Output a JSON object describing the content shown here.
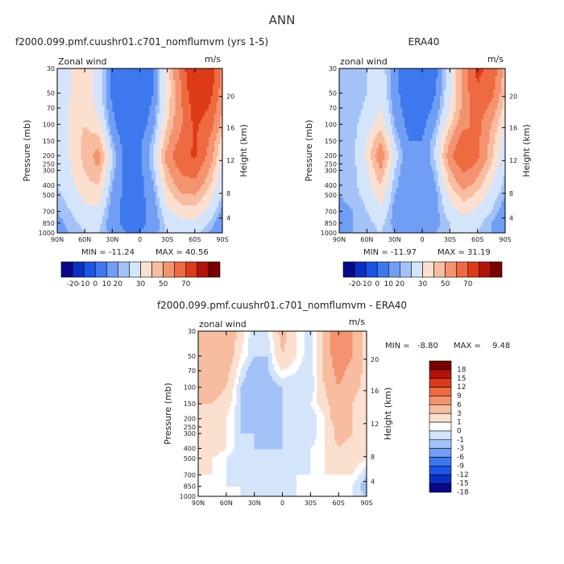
{
  "figure_title": "ANN",
  "chart_data": [
    {
      "type": "heatmap",
      "id": "model",
      "title": "f2000.099.pmf.cuushr01.c701_nomflumvm (yrs 1-5)",
      "variable_label": "Zonal wind",
      "units": "m/s",
      "xlabel": "",
      "ylabel": "Pressure (mb)",
      "y2label": "Height (km)",
      "x_ticks": [
        "90N",
        "60N",
        "30N",
        "0",
        "30S",
        "60S",
        "90S"
      ],
      "y_ticks": [
        "30",
        "50",
        "70",
        "100",
        "150",
        "200",
        "250",
        "300",
        "400",
        "500",
        "700",
        "850",
        "1000"
      ],
      "y2_ticks": [
        "20",
        "16",
        "12",
        "8",
        "4"
      ],
      "min_label": "MIN = -11.24",
      "max_label": "MAX = 40.56",
      "min": -11.24,
      "max": 40.56,
      "colorbar": {
        "orientation": "horizontal",
        "labels": [
          "-20",
          "-10",
          "0",
          "10",
          "20",
          "30",
          "50",
          "70"
        ],
        "colors": [
          "#08088a",
          "#0a2fc4",
          "#1c54e8",
          "#3d78ee",
          "#6f9ef4",
          "#a3c2f8",
          "#d4e4fb",
          "#fbe0d0",
          "#f8bda0",
          "#f49370",
          "#ee6a40",
          "#dc3a18",
          "#b31409",
          "#7a0000"
        ]
      },
      "contour_levels": [
        -10,
        -5,
        0,
        5,
        10,
        15,
        20,
        25,
        30,
        35,
        40
      ],
      "grid_lat": [
        "90N",
        "75N",
        "60N",
        "45N",
        "30N",
        "15N",
        "0",
        "15S",
        "30S",
        "45S",
        "60S",
        "75S",
        "90S"
      ],
      "grid_p": [
        30,
        50,
        70,
        100,
        150,
        200,
        250,
        300,
        400,
        500,
        700,
        850,
        1000
      ],
      "values": [
        [
          0,
          4,
          6,
          2,
          -6,
          -9,
          -8,
          -5,
          5,
          20,
          38,
          36,
          16
        ],
        [
          0,
          4,
          6,
          2,
          -6,
          -9,
          -8,
          -5,
          5,
          18,
          33,
          30,
          14
        ],
        [
          0,
          5,
          7,
          3,
          -5,
          -8,
          -8,
          -4,
          6,
          17,
          30,
          26,
          12
        ],
        [
          0,
          5,
          8,
          5,
          -4,
          -8,
          -7,
          -3,
          8,
          17,
          28,
          22,
          10
        ],
        [
          0,
          5,
          9,
          10,
          -2,
          -7,
          -6,
          -1,
          11,
          20,
          27,
          18,
          6
        ],
        [
          0,
          5,
          9,
          14,
          0,
          -7,
          -6,
          0,
          14,
          24,
          27,
          16,
          4
        ],
        [
          0,
          4,
          9,
          13,
          0,
          -7,
          -6,
          0,
          13,
          22,
          24,
          14,
          3
        ],
        [
          0,
          4,
          8,
          11,
          -1,
          -7,
          -6,
          -1,
          11,
          19,
          21,
          12,
          2
        ],
        [
          0,
          3,
          7,
          8,
          -2,
          -6,
          -6,
          -2,
          8,
          15,
          16,
          9,
          1
        ],
        [
          -1,
          2,
          5,
          6,
          -3,
          -6,
          -6,
          -3,
          6,
          11,
          12,
          6,
          0
        ],
        [
          -2,
          0,
          3,
          3,
          -4,
          -6,
          -6,
          -4,
          3,
          6,
          6,
          3,
          -3
        ],
        [
          -3,
          -1,
          1,
          1,
          -4,
          -6,
          -6,
          -4,
          1,
          3,
          3,
          0,
          -5
        ],
        [
          -3,
          -2,
          0,
          0,
          -3,
          -5,
          -5,
          -3,
          0,
          1,
          1,
          -2,
          -5
        ]
      ]
    },
    {
      "type": "heatmap",
      "id": "obs",
      "title": "ERA40",
      "variable_label": "zonal wind",
      "units": "m/s",
      "xlabel": "",
      "ylabel": "Pressure (mb)",
      "y2label": "Height (km)",
      "x_ticks": [
        "90N",
        "60N",
        "30N",
        "0",
        "30S",
        "60S",
        "90S"
      ],
      "y_ticks": [
        "30",
        "50",
        "70",
        "100",
        "150",
        "200",
        "250",
        "300",
        "400",
        "500",
        "700",
        "850",
        "1000"
      ],
      "y2_ticks": [
        "20",
        "16",
        "12",
        "8",
        "4"
      ],
      "min_label": "MIN = -11.97",
      "max_label": "MAX = 31.19",
      "min": -11.97,
      "max": 31.19,
      "colorbar": {
        "orientation": "horizontal",
        "labels": [
          "-20",
          "-10",
          "0",
          "10",
          "20",
          "30",
          "50",
          "70"
        ],
        "colors": [
          "#08088a",
          "#0a2fc4",
          "#1c54e8",
          "#3d78ee",
          "#6f9ef4",
          "#a3c2f8",
          "#d4e4fb",
          "#fbe0d0",
          "#f8bda0",
          "#f49370",
          "#ee6a40",
          "#dc3a18",
          "#b31409",
          "#7a0000"
        ]
      },
      "contour_levels": [
        -10,
        -5,
        0,
        5,
        10,
        15,
        20,
        25,
        30
      ],
      "grid_lat": [
        "90N",
        "75N",
        "60N",
        "45N",
        "30N",
        "15N",
        "0",
        "15S",
        "30S",
        "45S",
        "60S",
        "75S",
        "90S"
      ],
      "grid_p": [
        30,
        50,
        70,
        100,
        150,
        200,
        250,
        300,
        400,
        500,
        700,
        850,
        1000
      ],
      "values": [
        [
          -2,
          -2,
          0,
          2,
          -4,
          -8,
          -8,
          -6,
          2,
          14,
          28,
          24,
          10
        ],
        [
          -2,
          -2,
          0,
          3,
          -4,
          -7,
          -7,
          -5,
          3,
          14,
          25,
          20,
          8
        ],
        [
          -2,
          -2,
          1,
          4,
          -3,
          -7,
          -7,
          -4,
          4,
          14,
          22,
          16,
          6
        ],
        [
          -2,
          -1,
          2,
          6,
          -2,
          -6,
          -6,
          -2,
          7,
          16,
          20,
          12,
          4
        ],
        [
          -2,
          -1,
          4,
          12,
          0,
          -5,
          -5,
          0,
          12,
          22,
          20,
          10,
          2
        ],
        [
          -2,
          -1,
          5,
          16,
          2,
          -5,
          -5,
          1,
          16,
          26,
          20,
          9,
          1
        ],
        [
          -2,
          -1,
          4,
          14,
          1,
          -5,
          -5,
          0,
          14,
          23,
          17,
          8,
          0
        ],
        [
          -2,
          -1,
          3,
          12,
          0,
          -5,
          -5,
          -1,
          11,
          19,
          14,
          6,
          0
        ],
        [
          -2,
          -1,
          2,
          8,
          -1,
          -5,
          -5,
          -2,
          8,
          14,
          10,
          4,
          -1
        ],
        [
          -2,
          -1,
          1,
          6,
          -2,
          -5,
          -5,
          -3,
          5,
          10,
          7,
          2,
          -2
        ],
        [
          -3,
          -2,
          0,
          3,
          -3,
          -5,
          -5,
          -3,
          2,
          5,
          3,
          0,
          -4
        ],
        [
          -3,
          -2,
          -1,
          1,
          -3,
          -5,
          -5,
          -3,
          0,
          2,
          1,
          -2,
          -5
        ],
        [
          -3,
          -2,
          -1,
          0,
          -2,
          -4,
          -4,
          -2,
          0,
          1,
          0,
          -2,
          -5
        ]
      ]
    },
    {
      "type": "heatmap",
      "id": "diff",
      "title": "f2000.099.pmf.cuushr01.c701_nomflumvm - ERA40",
      "variable_label": "zonal wind",
      "units": "m/s",
      "xlabel": "",
      "ylabel": "Pressure (mb)",
      "y2label": "Height (km)",
      "x_ticks": [
        "90N",
        "60N",
        "30N",
        "0",
        "30S",
        "60S",
        "90S"
      ],
      "y_ticks": [
        "30",
        "50",
        "70",
        "100",
        "150",
        "200",
        "250",
        "300",
        "400",
        "500",
        "700",
        "850",
        "1000"
      ],
      "y2_ticks": [
        "20",
        "16",
        "12",
        "8",
        "4"
      ],
      "min_label": "MIN =",
      "min_value_label": "-8.80",
      "max_label": "MAX =",
      "max_value_label": "9.48",
      "min": -8.8,
      "max": 9.48,
      "colorbar": {
        "orientation": "vertical",
        "labels": [
          "18",
          "15",
          "12",
          "9",
          "6",
          "3",
          "1",
          "0",
          "-1",
          "-3",
          "-6",
          "-9",
          "-12",
          "-15",
          "-18"
        ],
        "colors": [
          "#7a0000",
          "#b31409",
          "#dc3a18",
          "#ee6a40",
          "#f49370",
          "#f8bda0",
          "#fbe0d0",
          "#ffffff",
          "#d4e4fb",
          "#a3c2f8",
          "#6f9ef4",
          "#3d78ee",
          "#1c54e8",
          "#0a2fc4",
          "#08088a"
        ]
      },
      "contour_levels": [
        -9,
        -6,
        -3,
        -1,
        0,
        1,
        3,
        6,
        9
      ],
      "grid_lat": [
        "90N",
        "75N",
        "60N",
        "45N",
        "30N",
        "15N",
        "0",
        "15S",
        "30S",
        "45S",
        "60S",
        "75S",
        "90S"
      ],
      "grid_p": [
        30,
        50,
        70,
        100,
        150,
        200,
        250,
        300,
        400,
        500,
        700,
        850,
        1000
      ],
      "values": [
        [
          3,
          5,
          6,
          2,
          -1,
          0,
          4,
          1,
          -1,
          4,
          9,
          6,
          2
        ],
        [
          3,
          5,
          5,
          1,
          -1,
          -1,
          3,
          1,
          -1,
          4,
          8,
          6,
          2
        ],
        [
          3,
          5,
          4,
          0,
          -2,
          -1,
          1,
          0,
          -1,
          4,
          7,
          5,
          2
        ],
        [
          3,
          4,
          3,
          -1,
          -2,
          -2,
          -1,
          -1,
          -1,
          3,
          6,
          4,
          2
        ],
        [
          3,
          3,
          2,
          -1,
          -2,
          -2,
          -1,
          -1,
          0,
          2,
          5,
          3,
          1
        ],
        [
          2,
          3,
          1,
          -1,
          -2,
          -2,
          -1,
          -1,
          -1,
          1,
          5,
          3,
          1
        ],
        [
          2,
          2,
          1,
          -1,
          -2,
          -2,
          -1,
          -1,
          -1,
          1,
          4,
          3,
          1
        ],
        [
          2,
          2,
          1,
          -1,
          -1,
          -2,
          -1,
          -1,
          -1,
          1,
          4,
          3,
          1
        ],
        [
          2,
          2,
          1,
          -1,
          -1,
          -1,
          -1,
          -1,
          0,
          1,
          3,
          2,
          1
        ],
        [
          1,
          1,
          0,
          -1,
          -1,
          -1,
          -1,
          -1,
          0,
          1,
          2,
          2,
          1
        ],
        [
          1,
          1,
          0,
          -1,
          -1,
          0,
          -1,
          0,
          0,
          1,
          1,
          1,
          -1
        ],
        [
          0,
          1,
          0,
          0,
          -1,
          0,
          -1,
          0,
          0,
          0,
          1,
          0,
          -2
        ],
        [
          0,
          0,
          0,
          0,
          0,
          0,
          0,
          0,
          0,
          0,
          0,
          0,
          -1
        ]
      ]
    }
  ]
}
